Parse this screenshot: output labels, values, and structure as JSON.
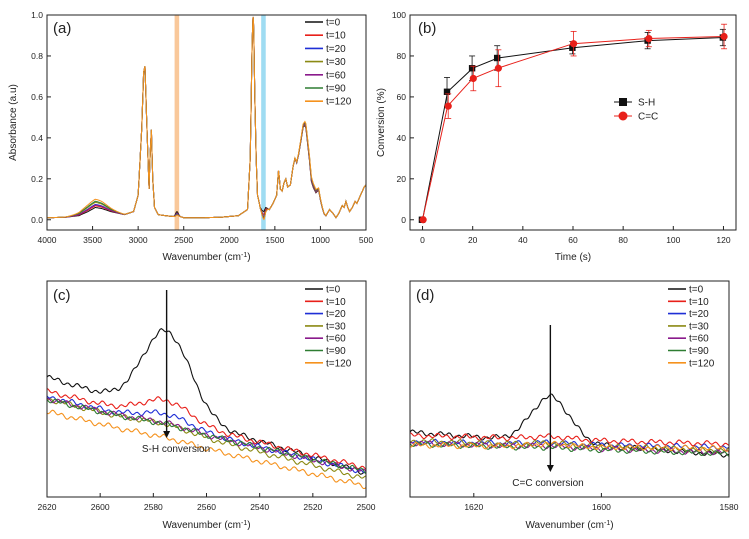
{
  "chart_data": [
    {
      "panel": "(a)",
      "type": "line",
      "xlabel": "Wavenumber (cm",
      "xlabel_sup": "-1",
      "xlabel_tail": ")",
      "ylabel": "Absorbance (a.u)",
      "xlim": [
        4000,
        500
      ],
      "ylim": [
        -0.05,
        1.0
      ],
      "xticks": [
        4000,
        3500,
        3000,
        2500,
        2000,
        1500,
        1000,
        500
      ],
      "yticks": [
        "0.0",
        "0.2",
        "0.4",
        "0.6",
        "0.8",
        "1.0"
      ],
      "highlight_bands": [
        {
          "from": 2600,
          "to": 2550,
          "color": "#f9c89a"
        },
        {
          "from": 1650,
          "to": 1600,
          "color": "#9fdcf2"
        }
      ],
      "legend": [
        "t=0",
        "t=10",
        "t=20",
        "t=30",
        "t=60",
        "t=90",
        "t=120"
      ],
      "colors": [
        "#111111",
        "#e8201a",
        "#1f2fd6",
        "#8b8a14",
        "#8a1a8c",
        "#2e7d32",
        "#f5921e"
      ],
      "base_spectrum": {
        "x": [
          4000,
          3800,
          3650,
          3550,
          3470,
          3400,
          3300,
          3150,
          3050,
          3000,
          2960,
          2940,
          2925,
          2900,
          2880,
          2870,
          2855,
          2840,
          2820,
          2780,
          2700,
          2600,
          2570,
          2500,
          2300,
          2100,
          1900,
          1800,
          1770,
          1750,
          1740,
          1735,
          1728,
          1720,
          1705,
          1690,
          1660,
          1640,
          1620,
          1600,
          1560,
          1520,
          1480,
          1460,
          1450,
          1440,
          1420,
          1400,
          1380,
          1360,
          1330,
          1300,
          1280,
          1260,
          1240,
          1210,
          1190,
          1170,
          1160,
          1140,
          1120,
          1100,
          1080,
          1050,
          1020,
          1000,
          980,
          960,
          940,
          900,
          860,
          830,
          800,
          760,
          740,
          720,
          700,
          680,
          650,
          620,
          600,
          560,
          520,
          500
        ],
        "y": [
          0.01,
          0.012,
          0.02,
          0.04,
          0.06,
          0.055,
          0.04,
          0.025,
          0.04,
          0.12,
          0.45,
          0.72,
          0.75,
          0.4,
          0.15,
          0.3,
          0.44,
          0.2,
          0.06,
          0.025,
          0.02,
          0.015,
          0.02,
          0.01,
          0.01,
          0.012,
          0.02,
          0.05,
          0.3,
          0.85,
          0.99,
          0.98,
          0.85,
          0.6,
          0.3,
          0.12,
          0.06,
          0.045,
          0.04,
          0.06,
          0.05,
          0.08,
          0.12,
          0.24,
          0.2,
          0.15,
          0.14,
          0.18,
          0.2,
          0.16,
          0.17,
          0.26,
          0.3,
          0.28,
          0.32,
          0.4,
          0.46,
          0.47,
          0.46,
          0.38,
          0.3,
          0.2,
          0.17,
          0.14,
          0.15,
          0.1,
          0.06,
          0.03,
          0.02,
          0.05,
          0.03,
          0.01,
          0.03,
          0.07,
          0.06,
          0.09,
          0.06,
          0.04,
          0.06,
          0.09,
          0.08,
          0.12,
          0.16,
          0.17
        ]
      },
      "oh_peak_heights": [
        0.06,
        0.068,
        0.075,
        0.085,
        0.072,
        0.09,
        0.1
      ],
      "sh_peak_heights": [
        0.02,
        0.012,
        0.01,
        0.006,
        0.005,
        0.004,
        0.003
      ],
      "cc_peak_heights": [
        0.06,
        0.045,
        0.035,
        0.03,
        0.028,
        0.025,
        0.022
      ]
    },
    {
      "panel": "(b)",
      "type": "line",
      "xlabel": "Time (s)",
      "ylabel": "Conversion (%)",
      "xlim": [
        -5,
        125
      ],
      "ylim": [
        -5,
        100
      ],
      "xticks": [
        0,
        20,
        40,
        60,
        80,
        100,
        120
      ],
      "yticks": [
        0,
        20,
        40,
        60,
        80,
        100
      ],
      "x": [
        0,
        10,
        20,
        30,
        60,
        90,
        120
      ],
      "series": [
        {
          "name": "S-H",
          "color": "#111111",
          "marker": "square",
          "values": [
            0,
            62.5,
            74,
            79,
            84,
            87.5,
            89
          ],
          "errors": [
            0,
            7,
            6,
            6,
            3,
            4,
            4
          ]
        },
        {
          "name": "C=C",
          "color": "#e8201a",
          "marker": "circle",
          "values": [
            0,
            55.5,
            69,
            74,
            86,
            88.5,
            89.5
          ],
          "errors": [
            0,
            6,
            6,
            9,
            6,
            4,
            6
          ]
        }
      ]
    },
    {
      "panel": "(c)",
      "type": "line",
      "xlabel": "Wavenumber (cm",
      "xlabel_sup": "-1",
      "xlabel_tail": ")",
      "xlim": [
        2620,
        2500
      ],
      "ylim": [
        0,
        1
      ],
      "xticks": [
        2620,
        2600,
        2580,
        2560,
        2540,
        2520,
        2500
      ],
      "legend": [
        "t=0",
        "t=10",
        "t=20",
        "t=30",
        "t=60",
        "t=90",
        "t=120"
      ],
      "colors": [
        "#111111",
        "#e8201a",
        "#1f2fd6",
        "#8b8a14",
        "#8a1a8c",
        "#2e7d32",
        "#f5921e"
      ],
      "annotation": "S-H conversion",
      "arrow_x": 2575,
      "peak_center": 2575,
      "peak_width": 9,
      "peak_heights": [
        0.38,
        0.09,
        0.05,
        0.02,
        0.015,
        0.01,
        0.008
      ],
      "baseline_start": [
        0.555,
        0.49,
        0.465,
        0.455,
        0.455,
        0.45,
        0.395
      ],
      "baseline_end": [
        0.11,
        0.135,
        0.115,
        0.085,
        0.115,
        0.12,
        0.05
      ]
    },
    {
      "panel": "(d)",
      "type": "line",
      "xlabel": "Wavenumber (cm",
      "xlabel_sup": "-1",
      "xlabel_tail": ")",
      "xlim": [
        1630,
        1580
      ],
      "ylim": [
        0,
        1
      ],
      "xticks": [
        1620,
        1600,
        1580
      ],
      "legend": [
        "t=0",
        "t=10",
        "t=20",
        "t=30",
        "t=60",
        "t=90",
        "t=120"
      ],
      "colors": [
        "#111111",
        "#e8201a",
        "#1f2fd6",
        "#8b8a14",
        "#8a1a8c",
        "#2e7d32",
        "#f5921e"
      ],
      "annotation": "C=C conversion",
      "arrow_x": 1608,
      "peak_center": 1608,
      "peak_width": 3,
      "peak_heights": [
        0.21,
        0.012,
        0.008,
        0.01,
        0.006,
        0.004,
        0.012
      ],
      "baseline_start": [
        0.3,
        0.285,
        0.255,
        0.26,
        0.25,
        0.245,
        0.24
      ],
      "baseline_end": [
        0.195,
        0.245,
        0.23,
        0.215,
        0.205,
        0.2,
        0.225
      ]
    }
  ]
}
